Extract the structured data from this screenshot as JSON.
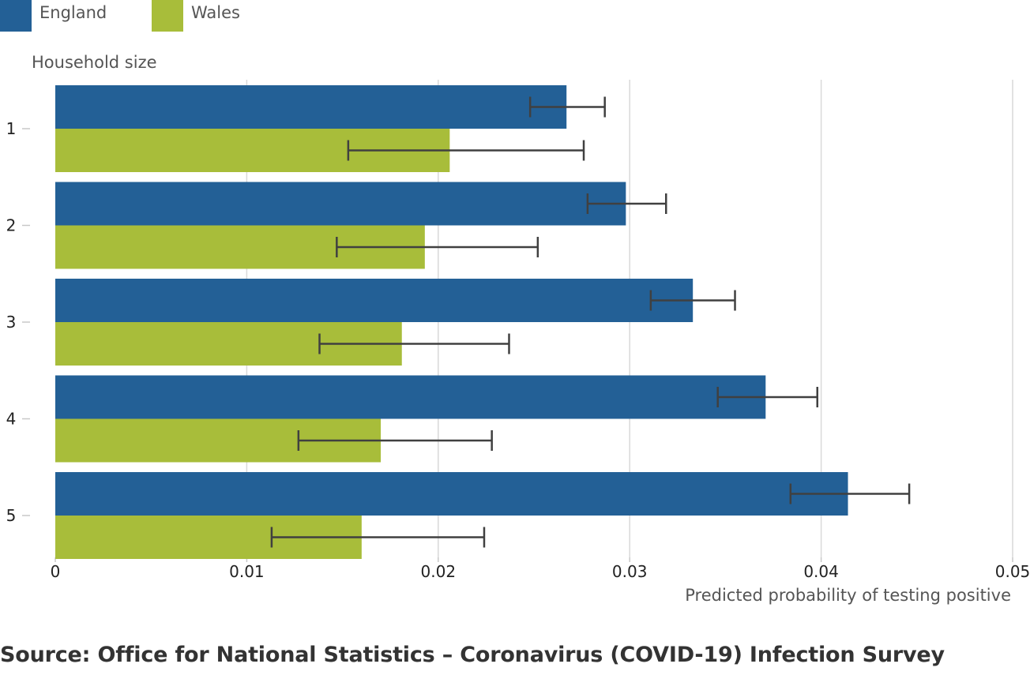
{
  "chart_data": {
    "type": "bar",
    "orientation": "horizontal",
    "categories": [
      "1",
      "2",
      "3",
      "4",
      "5"
    ],
    "series": [
      {
        "name": "England",
        "color": "#236096",
        "values": [
          0.0267,
          0.0298,
          0.0333,
          0.0371,
          0.0414
        ],
        "ci_lower": [
          0.0248,
          0.0278,
          0.0311,
          0.0346,
          0.0384
        ],
        "ci_upper": [
          0.0287,
          0.0319,
          0.0355,
          0.0398,
          0.0446
        ]
      },
      {
        "name": "Wales",
        "color": "#a8bd3a",
        "values": [
          0.0206,
          0.0193,
          0.0181,
          0.017,
          0.016
        ],
        "ci_lower": [
          0.0153,
          0.0147,
          0.0138,
          0.0127,
          0.0113
        ],
        "ci_upper": [
          0.0276,
          0.0252,
          0.0237,
          0.0228,
          0.0224
        ]
      }
    ],
    "xlim": [
      0,
      0.05
    ],
    "x_ticks": [
      "0",
      "0.01",
      "0.02",
      "0.03",
      "0.04",
      "0.05"
    ],
    "x_tick_values": [
      0,
      0.01,
      0.02,
      0.03,
      0.04,
      0.05
    ],
    "xlabel": "Predicted probability of testing positive",
    "ylabel": "Household size",
    "grid": "vertical",
    "legend_position": "top-left",
    "error_bar_color": "#404040"
  },
  "source": "Source: Office for National Statistics – Coronavirus (COVID-19) Infection Survey"
}
